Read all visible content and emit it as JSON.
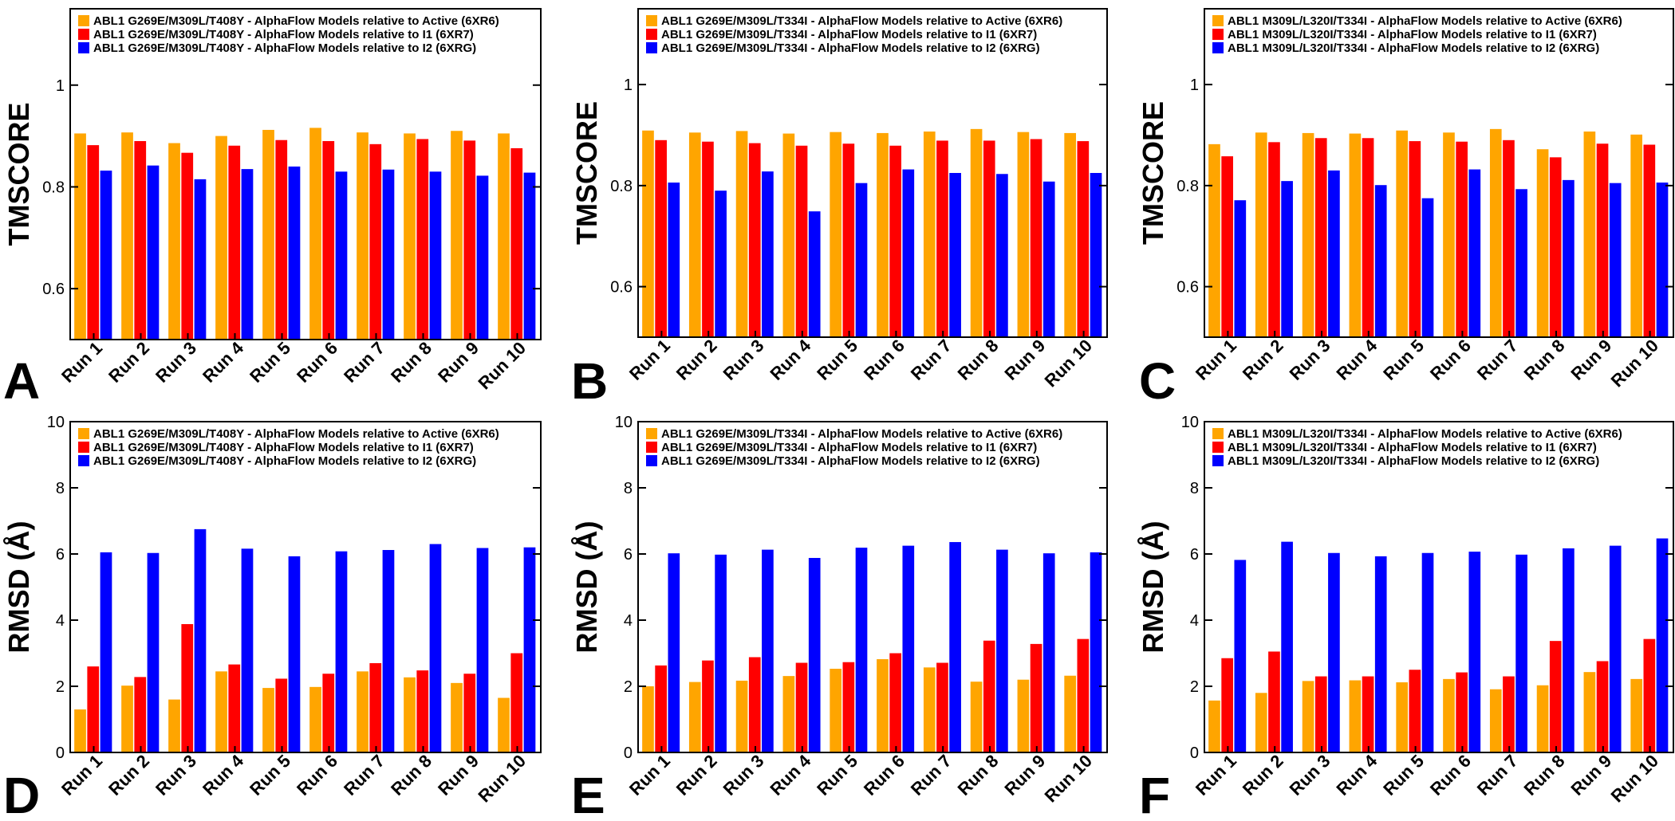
{
  "colors": {
    "active": "#ffa500",
    "i1": "#ff0000",
    "i2": "#0000ff",
    "frame": "#000000"
  },
  "chart_data": [
    {
      "type": "bar",
      "panel": "A",
      "ylabel": "TMSCORE",
      "ylim": [
        0.5,
        1.15
      ],
      "yticks": [
        0.6,
        0.8,
        1
      ],
      "ytick_labels": [
        "0.6",
        "0.8",
        "1"
      ],
      "categories": [
        "Run 1",
        "Run 2",
        "Run 3",
        "Run 4",
        "Run 5",
        "Run 6",
        "Run 7",
        "Run 8",
        "Run 9",
        "Run 10"
      ],
      "series": [
        {
          "name": "ABL1 G269E/M309L/T408Y - AlphaFlow Models relative to Active (6XR6)",
          "key": "active",
          "values": [
            0.905,
            0.907,
            0.886,
            0.9,
            0.912,
            0.916,
            0.907,
            0.905,
            0.91,
            0.905
          ]
        },
        {
          "name": "ABL1 G269E/M309L/T408Y - AlphaFlow Models relative to I1 (6XR7)",
          "key": "i1",
          "values": [
            0.882,
            0.89,
            0.867,
            0.881,
            0.892,
            0.89,
            0.884,
            0.894,
            0.891,
            0.876
          ]
        },
        {
          "name": "ABL1 G269E/M309L/T408Y - AlphaFlow Models relative to I2 (6XRG)",
          "key": "i2",
          "values": [
            0.832,
            0.842,
            0.815,
            0.835,
            0.84,
            0.83,
            0.834,
            0.83,
            0.822,
            0.828
          ]
        }
      ]
    },
    {
      "type": "bar",
      "panel": "B",
      "ylabel": "TMSCORE",
      "ylim": [
        0.5,
        1.15
      ],
      "yticks": [
        0.6,
        0.8,
        1
      ],
      "ytick_labels": [
        "0.6",
        "0.8",
        "1"
      ],
      "categories": [
        "Run 1",
        "Run 2",
        "Run 3",
        "Run 4",
        "Run 5",
        "Run 6",
        "Run 7",
        "Run 8",
        "Run 9",
        "Run 10"
      ],
      "series": [
        {
          "name": "ABL1 G269E/M309L/T334I - AlphaFlow Models relative to Active (6XR6)",
          "key": "active",
          "values": [
            0.909,
            0.905,
            0.908,
            0.903,
            0.906,
            0.904,
            0.907,
            0.912,
            0.906,
            0.904
          ]
        },
        {
          "name": "ABL1 G269E/M309L/T334I - AlphaFlow Models relative to I1 (6XR7)",
          "key": "i1",
          "values": [
            0.89,
            0.887,
            0.884,
            0.879,
            0.883,
            0.879,
            0.889,
            0.889,
            0.892,
            0.888
          ]
        },
        {
          "name": "ABL1 G269E/M309L/T334I - AlphaFlow Models relative to I2 (6XRG)",
          "key": "i2",
          "values": [
            0.806,
            0.79,
            0.828,
            0.749,
            0.805,
            0.832,
            0.825,
            0.823,
            0.808,
            0.825
          ]
        }
      ]
    },
    {
      "type": "bar",
      "panel": "C",
      "ylabel": "TMSCORE",
      "ylim": [
        0.5,
        1.15
      ],
      "yticks": [
        0.6,
        0.8,
        1
      ],
      "ytick_labels": [
        "0.6",
        "0.8",
        "1"
      ],
      "categories": [
        "Run 1",
        "Run 2",
        "Run 3",
        "Run 4",
        "Run 5",
        "Run 6",
        "Run 7",
        "Run 8",
        "Run 9",
        "Run 10"
      ],
      "series": [
        {
          "name": "ABL1 M309L/L320I/T334I - AlphaFlow Models relative to Active (6XR6)",
          "key": "active",
          "values": [
            0.882,
            0.905,
            0.904,
            0.903,
            0.909,
            0.905,
            0.912,
            0.872,
            0.907,
            0.901
          ]
        },
        {
          "name": "ABL1 M309L/L320I/T334I - AlphaFlow Models relative to I1 (6XR7)",
          "key": "i1",
          "values": [
            0.858,
            0.886,
            0.894,
            0.894,
            0.888,
            0.887,
            0.89,
            0.856,
            0.883,
            0.881
          ]
        },
        {
          "name": "ABL1 M309L/L320I/T334I - AlphaFlow Models relative to I2 (6XRG)",
          "key": "i2",
          "values": [
            0.771,
            0.809,
            0.83,
            0.801,
            0.775,
            0.832,
            0.793,
            0.811,
            0.805,
            0.806
          ]
        }
      ]
    },
    {
      "type": "bar",
      "panel": "D",
      "ylabel": "RMSD (Å)",
      "ylim": [
        0,
        10
      ],
      "yticks": [
        0,
        2,
        4,
        6,
        8,
        10
      ],
      "ytick_labels": [
        "0",
        "2",
        "4",
        "6",
        "8",
        "10"
      ],
      "categories": [
        "Run 1",
        "Run 2",
        "Run 3",
        "Run 4",
        "Run 5",
        "Run 6",
        "Run 7",
        "Run 8",
        "Run 9",
        "Run 10"
      ],
      "series": [
        {
          "name": "ABL1 G269E/M309L/T408Y - AlphaFlow Models relative to Active (6XR6)",
          "key": "active",
          "values": [
            1.3,
            2.02,
            1.6,
            2.45,
            1.95,
            1.98,
            2.45,
            2.27,
            2.1,
            1.65
          ]
        },
        {
          "name": "ABL1 G269E/M309L/T408Y - AlphaFlow Models relative to I1 (6XR7)",
          "key": "i1",
          "values": [
            2.6,
            2.28,
            3.88,
            2.66,
            2.23,
            2.38,
            2.7,
            2.48,
            2.38,
            3.0
          ]
        },
        {
          "name": "ABL1 G269E/M309L/T408Y - AlphaFlow Models relative to I2 (6XRG)",
          "key": "i2",
          "values": [
            6.05,
            6.03,
            6.75,
            6.16,
            5.93,
            6.08,
            6.12,
            6.3,
            6.18,
            6.2
          ]
        }
      ]
    },
    {
      "type": "bar",
      "panel": "E",
      "ylabel": "RMSD (Å)",
      "ylim": [
        0,
        10
      ],
      "yticks": [
        0,
        2,
        4,
        6,
        8,
        10
      ],
      "ytick_labels": [
        "0",
        "2",
        "4",
        "6",
        "8",
        "10"
      ],
      "categories": [
        "Run 1",
        "Run 2",
        "Run 3",
        "Run 4",
        "Run 5",
        "Run 6",
        "Run 7",
        "Run 8",
        "Run 9",
        "Run 10"
      ],
      "series": [
        {
          "name": "ABL1 G269E/M309L/T334I - AlphaFlow Models relative to Active (6XR6)",
          "key": "active",
          "values": [
            2.0,
            2.13,
            2.17,
            2.31,
            2.53,
            2.82,
            2.57,
            2.14,
            2.2,
            2.32
          ]
        },
        {
          "name": "ABL1 G269E/M309L/T334I - AlphaFlow Models relative to I1 (6XR7)",
          "key": "i1",
          "values": [
            2.63,
            2.78,
            2.88,
            2.71,
            2.73,
            3.0,
            2.71,
            3.38,
            3.28,
            3.43
          ]
        },
        {
          "name": "ABL1 G269E/M309L/T334I - AlphaFlow Models relative to I2 (6XRG)",
          "key": "i2",
          "values": [
            6.02,
            5.98,
            6.13,
            5.88,
            6.19,
            6.25,
            6.36,
            6.13,
            6.02,
            6.05
          ]
        }
      ]
    },
    {
      "type": "bar",
      "panel": "F",
      "ylabel": "RMSD (Å)",
      "ylim": [
        0,
        10
      ],
      "yticks": [
        0,
        2,
        4,
        6,
        8,
        10
      ],
      "ytick_labels": [
        "0",
        "2",
        "4",
        "6",
        "8",
        "10"
      ],
      "categories": [
        "Run 1",
        "Run 2",
        "Run 3",
        "Run 4",
        "Run 5",
        "Run 6",
        "Run 7",
        "Run 8",
        "Run 9",
        "Run 10"
      ],
      "series": [
        {
          "name": "ABL1 M309L/L320I/T334I - AlphaFlow Models relative to Active (6XR6)",
          "key": "active",
          "values": [
            1.57,
            1.8,
            2.16,
            2.18,
            2.12,
            2.22,
            1.91,
            2.03,
            2.43,
            2.22
          ]
        },
        {
          "name": "ABL1 M309L/L320I/T334I - AlphaFlow Models relative to I1 (6XR7)",
          "key": "i1",
          "values": [
            2.85,
            3.05,
            2.3,
            2.3,
            2.5,
            2.42,
            2.3,
            3.37,
            2.76,
            3.43
          ]
        },
        {
          "name": "ABL1 M309L/L320I/T334I - AlphaFlow Models relative to I2 (6XRG)",
          "key": "i2",
          "values": [
            5.82,
            6.37,
            6.03,
            5.93,
            6.03,
            6.07,
            5.98,
            6.17,
            6.25,
            6.47
          ]
        }
      ]
    }
  ]
}
